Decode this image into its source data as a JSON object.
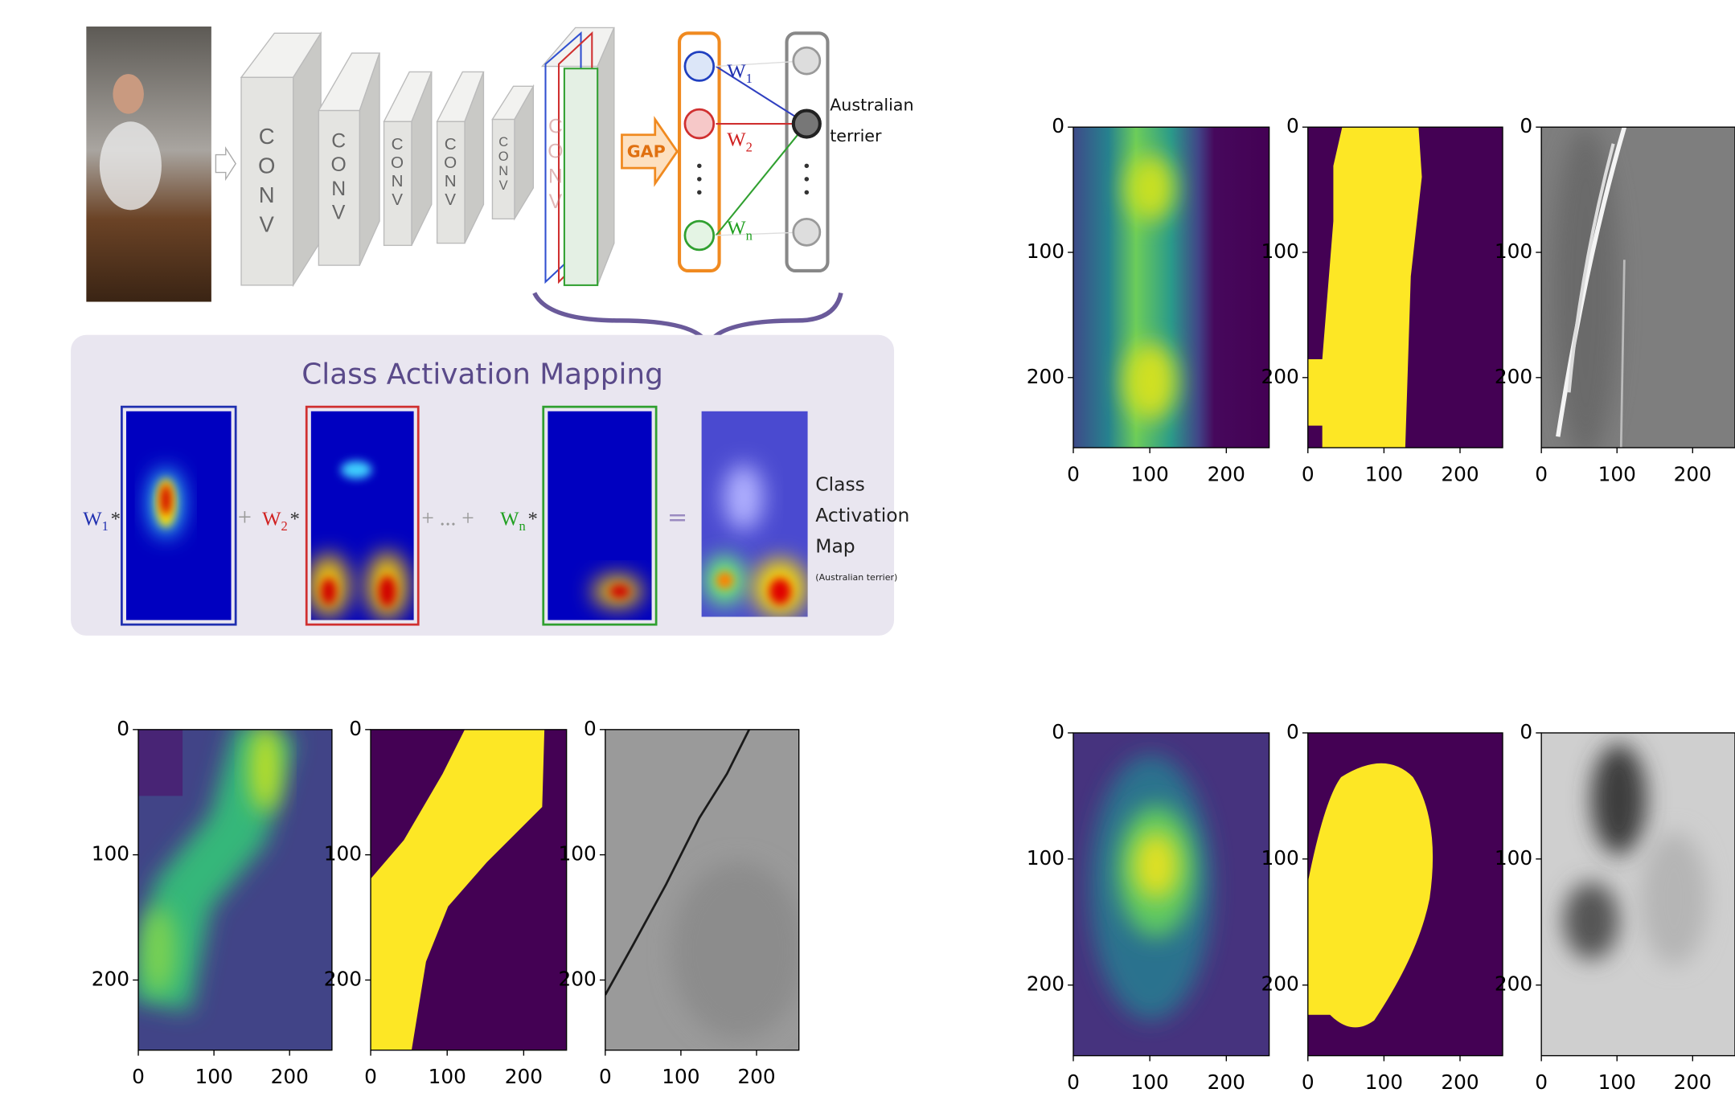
{
  "diagram": {
    "conv_labels": [
      "CONV",
      "CONV",
      "CONV",
      "CONV",
      "CONV",
      "CONV"
    ],
    "gap_label": "GAP",
    "weights": [
      {
        "letter": "W",
        "sub": "1"
      },
      {
        "letter": "W",
        "sub": "2"
      },
      {
        "letter": "W",
        "sub": "n"
      }
    ],
    "output_label": [
      "Australian",
      "terrier"
    ],
    "cam": {
      "title": "Class Activation Mapping",
      "terms": [
        {
          "letter": "W",
          "sub": "1",
          "op": "*"
        },
        {
          "letter": "W",
          "sub": "2",
          "op": "*"
        },
        {
          "letter": "W",
          "sub": "n",
          "op": "*"
        }
      ],
      "plus": "+",
      "plus_dots": "+ ... +",
      "equals": "=",
      "result_label": [
        "Class",
        "Activation",
        "Map"
      ],
      "result_note": "(Australian terrier)"
    }
  },
  "figure": {
    "groups": [
      {
        "panels": [
          {
            "xlim": [
              0,
              256
            ],
            "ylim": [
              256,
              0
            ],
            "xticks": [
              0,
              100,
              200
            ],
            "yticks": [
              0,
              100,
              200
            ]
          },
          {
            "xlim": [
              0,
              256
            ],
            "ylim": [
              256,
              0
            ],
            "xticks": [
              0,
              100,
              200
            ],
            "yticks": [
              0,
              100,
              200
            ]
          },
          {
            "xlim": [
              0,
              256
            ],
            "ylim": [
              256,
              0
            ],
            "xticks": [
              0,
              100,
              200
            ],
            "yticks": [
              0,
              100,
              200
            ]
          }
        ]
      },
      {
        "panels": [
          {
            "xlim": [
              0,
              256
            ],
            "ylim": [
              256,
              0
            ],
            "xticks": [
              0,
              100,
              200
            ],
            "yticks": [
              0,
              100,
              200
            ]
          },
          {
            "xlim": [
              0,
              256
            ],
            "ylim": [
              256,
              0
            ],
            "xticks": [
              0,
              100,
              200
            ],
            "yticks": [
              0,
              100,
              200
            ]
          },
          {
            "xlim": [
              0,
              256
            ],
            "ylim": [
              256,
              0
            ],
            "xticks": [
              0,
              100,
              200
            ],
            "yticks": [
              0,
              100,
              200
            ]
          }
        ]
      },
      {
        "panels": [
          {
            "xlim": [
              0,
              256
            ],
            "ylim": [
              256,
              0
            ],
            "xticks": [
              0,
              100,
              200
            ],
            "yticks": [
              0,
              100,
              200
            ]
          },
          {
            "xlim": [
              0,
              256
            ],
            "ylim": [
              256,
              0
            ],
            "xticks": [
              0,
              100,
              200
            ],
            "yticks": [
              0,
              100,
              200
            ]
          },
          {
            "xlim": [
              0,
              256
            ],
            "ylim": [
              256,
              0
            ],
            "xticks": [
              0,
              100,
              200
            ],
            "yticks": [
              0,
              100,
              200
            ]
          }
        ]
      }
    ]
  }
}
